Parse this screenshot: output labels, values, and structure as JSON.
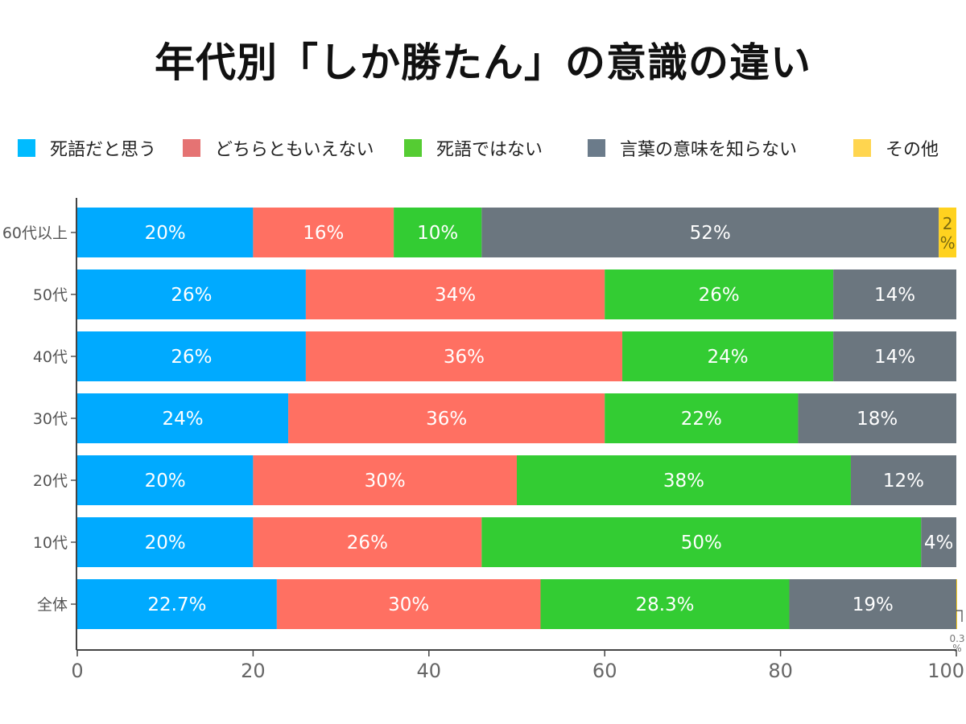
{
  "title": "年代別「しか勝たん」の意識の違い",
  "chart_data": {
    "type": "bar",
    "orientation": "horizontal",
    "stacked": true,
    "title": "年代別「しか勝たん」の意識の違い",
    "xlabel": "",
    "ylabel": "",
    "xlim": [
      0,
      100
    ],
    "xticks": [
      "0",
      "20",
      "40",
      "60",
      "80",
      "100"
    ],
    "legend_position": "top",
    "categories": [
      "60代以上",
      "50代",
      "40代",
      "30代",
      "20代",
      "10代",
      "全体"
    ],
    "series": [
      {
        "name": "死語だと思う",
        "color": "#00aaff",
        "values": [
          20,
          26,
          26,
          24,
          20,
          20,
          22.7
        ],
        "labels": [
          "20%",
          "26%",
          "26%",
          "24%",
          "20%",
          "20%",
          "22.7%"
        ]
      },
      {
        "name": "どちらともいえない",
        "color": "#ff7062",
        "values": [
          16,
          34,
          36,
          36,
          30,
          26,
          30
        ],
        "labels": [
          "16%",
          "34%",
          "36%",
          "36%",
          "30%",
          "26%",
          "30%"
        ]
      },
      {
        "name": "死語ではない",
        "color": "#33cc33",
        "values": [
          10,
          26,
          24,
          22,
          38,
          50,
          28.3
        ],
        "labels": [
          "10%",
          "26%",
          "24%",
          "22%",
          "38%",
          "50%",
          "28.3%"
        ]
      },
      {
        "name": "言葉の意味を知らない",
        "color": "#6b767f",
        "values": [
          52,
          14,
          14,
          18,
          12,
          4,
          19
        ],
        "labels": [
          "52%",
          "14%",
          "14%",
          "18%",
          "12%",
          "4%",
          "19%"
        ]
      },
      {
        "name": "その他",
        "color": "#ffd21f",
        "values": [
          2,
          0,
          0,
          0,
          0,
          0,
          0.3
        ],
        "labels": [
          "2%",
          "",
          "",
          "",
          "",
          "",
          "0.3%"
        ]
      }
    ]
  },
  "legend": {
    "swatch_colors": [
      "#00bbff",
      "#e57373",
      "#55cc33",
      "#6b7b8a",
      "#ffd54f"
    ]
  }
}
